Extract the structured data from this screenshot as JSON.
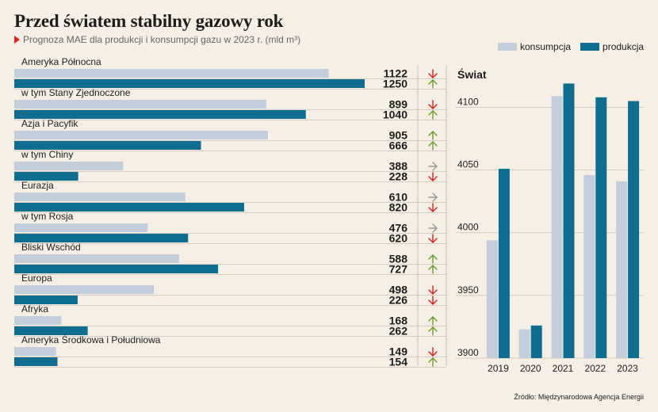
{
  "title": "Przed światem stabilny gazowy rok",
  "subtitle": "Prognoza MAE dla produkcji i konsumpcji gazu w 2023 r. (mld m³)",
  "source": "Źródło: Międzynarodowa Agencja Energii",
  "colors": {
    "consumption": "#c4cedb",
    "production": "#0f6e8f",
    "up": "#6e9a2d",
    "down": "#d81e1e",
    "flat": "#999999",
    "background": "#f6efe6"
  },
  "chart_data": [
    {
      "type": "bar",
      "orientation": "horizontal",
      "title": "",
      "series": [
        {
          "name": "konsumpcja",
          "values": [
            1122,
            899,
            905,
            388,
            610,
            476,
            588,
            498,
            168,
            149
          ]
        },
        {
          "name": "produkcja",
          "values": [
            1250,
            1040,
            666,
            228,
            820,
            620,
            727,
            226,
            262,
            154
          ]
        }
      ],
      "categories": [
        "Ameryka Północna",
        "w tym Stany Zjednoczone",
        "Azja i Pacyfik",
        "w tym Chiny",
        "Eurazja",
        "w tym Rosja",
        "Bliski Wschód",
        "Europa",
        "Afryka",
        "Ameryka Środkowa i Południowa"
      ],
      "trends": [
        [
          "down",
          "up"
        ],
        [
          "down",
          "up"
        ],
        [
          "up",
          "up"
        ],
        [
          "flat",
          "down"
        ],
        [
          "flat",
          "down"
        ],
        [
          "flat",
          "down"
        ],
        [
          "up",
          "up"
        ],
        [
          "down",
          "down"
        ],
        [
          "up",
          "up"
        ],
        [
          "down",
          "up"
        ]
      ],
      "xlim": [
        0,
        1250
      ]
    },
    {
      "type": "bar",
      "title": "Świat",
      "categories": [
        "2019",
        "2020",
        "2021",
        "2022",
        "2023"
      ],
      "series": [
        {
          "name": "konsumpcja",
          "values": [
            3994,
            3923,
            4109,
            4046,
            4041
          ]
        },
        {
          "name": "produkcja",
          "values": [
            4051,
            3926,
            4119,
            4108,
            4105
          ]
        }
      ],
      "ylim": [
        3900,
        4130
      ],
      "yticks": [
        3900,
        3950,
        4000,
        4050,
        4100
      ],
      "legend": "top",
      "grid": true
    }
  ]
}
